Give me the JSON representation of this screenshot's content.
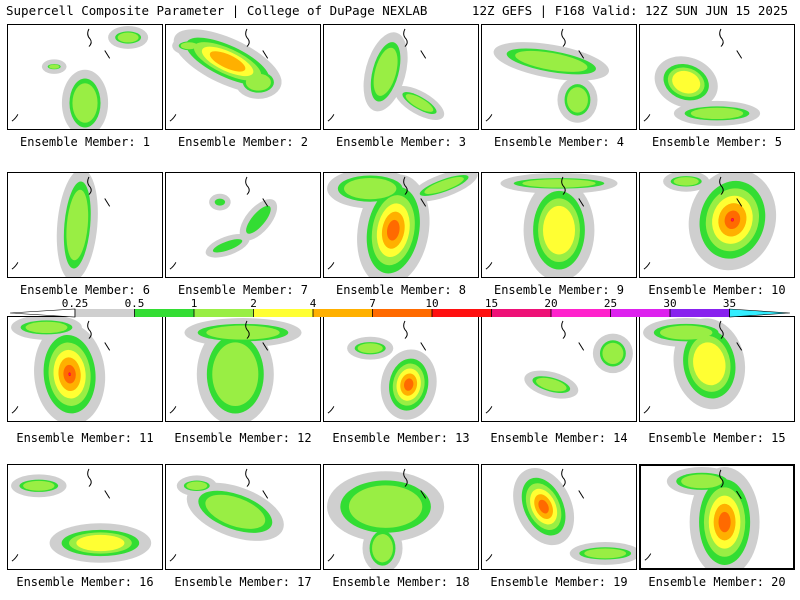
{
  "header": {
    "left": "Supercell Composite Parameter | College of DuPage NEXLAB",
    "right": "12Z GEFS | F168 Valid: 12Z SUN JUN 15 2025"
  },
  "colorbar": {
    "ticks": [
      "0.25",
      "0.5",
      "1",
      "2",
      "4",
      "7",
      "10",
      "15",
      "20",
      "25",
      "30",
      "35"
    ],
    "colors": [
      "#cfcfcf",
      "#33dd33",
      "#99ee44",
      "#ffff33",
      "#ffb000",
      "#ff6a00",
      "#ff1010",
      "#ee1177",
      "#ff22cc",
      "#dd22ee",
      "#8822ee",
      "#aa66dd",
      "#33eeff"
    ]
  },
  "panels": [
    {
      "label": "Ensemble Member: 1",
      "max": 2
    },
    {
      "label": "Ensemble Member: 2",
      "max": 4
    },
    {
      "label": "Ensemble Member: 3",
      "max": 2
    },
    {
      "label": "Ensemble Member: 4",
      "max": 2
    },
    {
      "label": "Ensemble Member: 5",
      "max": 3
    },
    {
      "label": "Ensemble Member: 6",
      "max": 2
    },
    {
      "label": "Ensemble Member: 7",
      "max": 1
    },
    {
      "label": "Ensemble Member: 8",
      "max": 5
    },
    {
      "label": "Ensemble Member: 9",
      "max": 3
    },
    {
      "label": "Ensemble Member: 10",
      "max": 7
    },
    {
      "label": "Ensemble Member: 11",
      "max": 7
    },
    {
      "label": "Ensemble Member: 12",
      "max": 2
    },
    {
      "label": "Ensemble Member: 13",
      "max": 5
    },
    {
      "label": "Ensemble Member: 14",
      "max": 2
    },
    {
      "label": "Ensemble Member: 15",
      "max": 3
    },
    {
      "label": "Ensemble Member: 16",
      "max": 3
    },
    {
      "label": "Ensemble Member: 17",
      "max": 2
    },
    {
      "label": "Ensemble Member: 18",
      "max": 2
    },
    {
      "label": "Ensemble Member: 19",
      "max": 5
    },
    {
      "label": "Ensemble Member: 20",
      "max": 5
    }
  ]
}
